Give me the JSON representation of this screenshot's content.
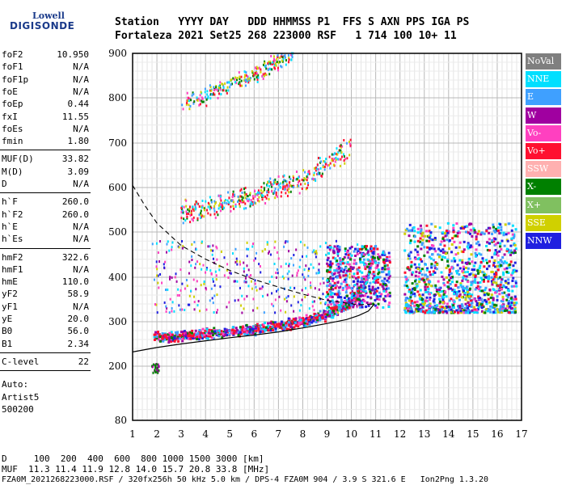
{
  "logo": {
    "line1": "Lowell",
    "line2": "DIGISONDE"
  },
  "header": {
    "row1": "Station   YYYY DAY   DDD HHMMSS P1  FFS S AXN PPS IGA PS",
    "row2": "Fortaleza 2021 Set25 268 223000 RSF   1 714 100 10+ 11"
  },
  "params": {
    "g1": [
      {
        "k": "foF2",
        "v": "10.950"
      },
      {
        "k": "foF1",
        "v": "N/A"
      },
      {
        "k": "foF1p",
        "v": "N/A"
      },
      {
        "k": "foE",
        "v": "N/A"
      },
      {
        "k": "foEp",
        "v": "0.44"
      },
      {
        "k": "fxI",
        "v": "11.55"
      },
      {
        "k": "foEs",
        "v": "N/A"
      },
      {
        "k": "fmin",
        "v": "1.80"
      }
    ],
    "g2": [
      {
        "k": "MUF(D)",
        "v": "33.82"
      },
      {
        "k": "M(D)",
        "v": "3.09"
      },
      {
        "k": "D",
        "v": "N/A"
      }
    ],
    "g3": [
      {
        "k": "h`F",
        "v": "260.0"
      },
      {
        "k": "h`F2",
        "v": "260.0"
      },
      {
        "k": "h`E",
        "v": "N/A"
      },
      {
        "k": "h`Es",
        "v": "N/A"
      }
    ],
    "g4": [
      {
        "k": "hmF2",
        "v": "322.6"
      },
      {
        "k": "hmF1",
        "v": "N/A"
      },
      {
        "k": "hmE",
        "v": "110.0"
      },
      {
        "k": "yF2",
        "v": "58.9"
      },
      {
        "k": "yF1",
        "v": "N/A"
      },
      {
        "k": "yE",
        "v": "20.0"
      },
      {
        "k": "B0",
        "v": "56.0"
      },
      {
        "k": "B1",
        "v": "2.34"
      }
    ],
    "g5": [
      {
        "k": "C-level",
        "v": "22"
      }
    ],
    "auto": [
      "Auto:",
      "Artist5",
      "500200"
    ]
  },
  "legend": [
    {
      "label": "NoVal",
      "color": "#7f7f7f"
    },
    {
      "label": "NNE",
      "color": "#00dfff"
    },
    {
      "label": "E",
      "color": "#3fa0ff"
    },
    {
      "label": "W",
      "color": "#a000a0"
    },
    {
      "label": "Vo-",
      "color": "#ff40c0"
    },
    {
      "label": "Vo+",
      "color": "#ff1030"
    },
    {
      "label": "SSW",
      "color": "#ffb0b0"
    },
    {
      "label": "X-",
      "color": "#008000"
    },
    {
      "label": "X+",
      "color": "#80c060"
    },
    {
      "label": "SSE",
      "color": "#d0d000"
    },
    {
      "label": "NNW",
      "color": "#2020e0"
    }
  ],
  "footer": {
    "line1": "D     100  200  400  600  800 1000 1500 3000 [km]",
    "line2": "MUF  11.3 11.4 11.9 12.8 14.0 15.7 20.8 33.8 [MHz]",
    "line3": "FZA0M_2021268223000.RSF / 320fx256h 50 kHz 5.0 km / DPS-4 FZA0M 904 / 3.9 S 321.6 E   Ion2Png 1.3.20"
  },
  "chart_data": {
    "type": "scatter",
    "title": "",
    "xlabel": "",
    "ylabel": "",
    "xlim": [
      1,
      17
    ],
    "ylim": [
      80,
      900
    ],
    "x_ticks": [
      1,
      2,
      3,
      4,
      5,
      6,
      7,
      8,
      9,
      10,
      11,
      12,
      13,
      14,
      15,
      16,
      17
    ],
    "y_ticks": [
      80,
      200,
      300,
      400,
      500,
      600,
      700,
      800,
      900
    ],
    "y_scale": "log-like",
    "profile_curve": [
      [
        1.0,
        232
      ],
      [
        1.5,
        237
      ],
      [
        2,
        242
      ],
      [
        3,
        250
      ],
      [
        4,
        257
      ],
      [
        5,
        264
      ],
      [
        6,
        270
      ],
      [
        7,
        277
      ],
      [
        8,
        286
      ],
      [
        9,
        296
      ],
      [
        9.8,
        305
      ],
      [
        10.3,
        314
      ],
      [
        10.7,
        324
      ],
      [
        10.95,
        340
      ]
    ],
    "dashed_curve": [
      [
        1.0,
        605
      ],
      [
        1.5,
        560
      ],
      [
        2,
        520
      ],
      [
        3,
        470
      ],
      [
        4,
        440
      ],
      [
        5,
        415
      ],
      [
        6,
        395
      ],
      [
        7,
        378
      ],
      [
        8,
        362
      ],
      [
        9,
        348
      ],
      [
        9.8,
        342
      ],
      [
        10.3,
        338
      ],
      [
        10.95,
        340
      ]
    ],
    "trace_o": [
      [
        1.9,
        265
      ],
      [
        2.5,
        265
      ],
      [
        3,
        268
      ],
      [
        4,
        272
      ],
      [
        5,
        276
      ],
      [
        6,
        282
      ],
      [
        7,
        290
      ],
      [
        8,
        300
      ],
      [
        9,
        315
      ],
      [
        9.5,
        330
      ],
      [
        10,
        345
      ],
      [
        10.5,
        375
      ],
      [
        10.95,
        450
      ]
    ],
    "trace_2hop": [
      [
        3,
        540
      ],
      [
        4,
        553
      ],
      [
        5,
        565
      ],
      [
        6,
        578
      ],
      [
        7,
        600
      ],
      [
        8,
        618
      ],
      [
        9,
        652
      ],
      [
        10,
        695
      ]
    ],
    "trace_3hop": [
      [
        3,
        785
      ],
      [
        4,
        805
      ],
      [
        5,
        828
      ],
      [
        6,
        852
      ],
      [
        7,
        880
      ],
      [
        7.6,
        900
      ]
    ],
    "cluster_spread_f": {
      "x_range": [
        12.2,
        16.8
      ],
      "h_range": [
        320,
        520
      ]
    }
  }
}
